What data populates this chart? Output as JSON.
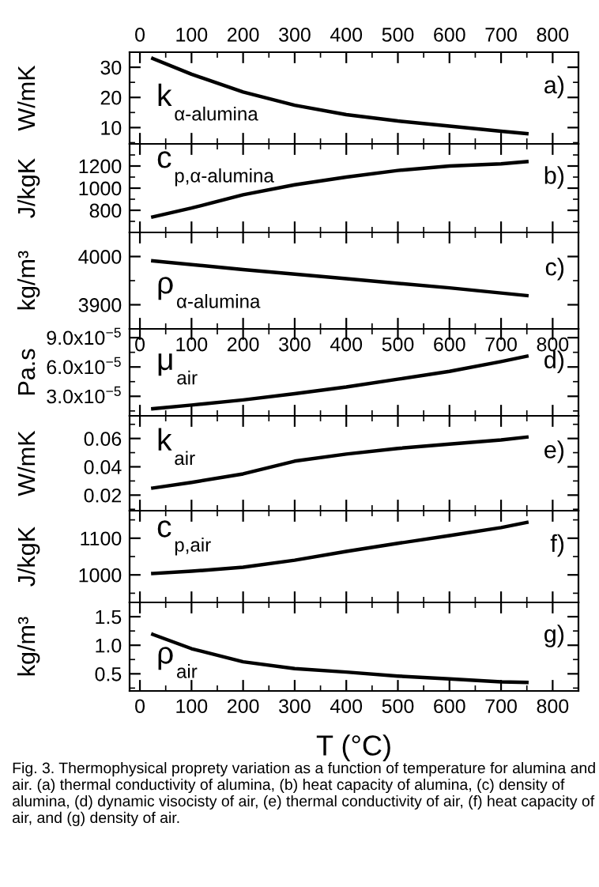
{
  "chart_data": [
    {
      "type": "line",
      "ylabel": "W/mK",
      "annotations": [
        "k$_{α-alumina}$",
        "a)"
      ],
      "xlim": [
        -20,
        850
      ],
      "xticks": [
        0,
        100,
        200,
        300,
        400,
        500,
        600,
        700,
        800
      ],
      "ylim": [
        4.6,
        35
      ],
      "yticks": [
        10,
        20,
        30
      ],
      "grid": false,
      "legend": false,
      "series": [
        {
          "color": "#000000",
          "x": [
            25,
            100,
            200,
            300,
            400,
            500,
            600,
            700,
            750
          ],
          "values": [
            32.9,
            27.7,
            21.8,
            17.4,
            14.3,
            12.2,
            10.5,
            8.8,
            8.0
          ]
        }
      ]
    },
    {
      "type": "line",
      "ylabel": "J/kgK",
      "annotations": [
        "c$_{p,α-alumina}$",
        "b)"
      ],
      "xlim": [
        -20,
        850
      ],
      "xticks": [
        0,
        100,
        200,
        300,
        400,
        500,
        600,
        700,
        800
      ],
      "tick_labels": "y",
      "ylim": [
        600,
        1400
      ],
      "yticks": [
        800,
        1000,
        1200
      ],
      "grid": false,
      "legend": false,
      "series": [
        {
          "color": "#000000",
          "x": [
            25,
            100,
            200,
            300,
            400,
            500,
            600,
            700,
            750
          ],
          "values": [
            740,
            820,
            940,
            1030,
            1100,
            1160,
            1200,
            1220,
            1240
          ]
        }
      ]
    },
    {
      "type": "line",
      "ylabel": "kg/m³",
      "annotations": [
        "ρ$_{α-alumina}$",
        "c)"
      ],
      "xlim": [
        -20,
        850
      ],
      "xticks": [
        0,
        100,
        200,
        300,
        400,
        500,
        600,
        700,
        800
      ],
      "tick_labels": "y",
      "ylim": [
        3850,
        4050
      ],
      "yticks": [
        3900,
        4000
      ],
      "grid": false,
      "legend": false,
      "series": [
        {
          "color": "#000000",
          "x": [
            25,
            200,
            400,
            600,
            750
          ],
          "values": [
            3991,
            3973,
            3954,
            3935,
            3919
          ]
        }
      ]
    },
    {
      "type": "line",
      "ylabel": "Pa.s",
      "annotations": [
        "μ$_{air}$",
        "d)"
      ],
      "xlim": [
        -20,
        850
      ],
      "xticks": [
        0,
        100,
        200,
        300,
        400,
        500,
        600,
        700,
        800
      ],
      "ylim": [
        1e-05,
        9.9e-05
      ],
      "yticks": [
        {
          "value": 3e-05,
          "label": "3.0x10$^{−5}$"
        },
        {
          "value": 6e-05,
          "label": "6.0x10$^{−5}$"
        },
        {
          "value": 9e-05,
          "label": "9.0x10$^{−5}$"
        }
      ],
      "grid": false,
      "legend": false,
      "series": [
        {
          "color": "#000000",
          "x": [
            25,
            100,
            200,
            300,
            400,
            500,
            600,
            700,
            750
          ],
          "values": [
            1.73e-05,
            2.1e-05,
            2.63e-05,
            3.27e-05,
            3.95e-05,
            4.75e-05,
            5.55e-05,
            6.55e-05,
            7.1e-05
          ]
        }
      ]
    },
    {
      "type": "line",
      "ylabel": "W/mK",
      "annotations": [
        "k$_{air}$",
        "e)"
      ],
      "xlim": [
        -20,
        850
      ],
      "xticks": [
        0,
        100,
        200,
        300,
        400,
        500,
        600,
        700,
        800
      ],
      "tick_labels": "y",
      "ylim": [
        0.009,
        0.076
      ],
      "yticks": [
        0.02,
        0.04,
        0.06
      ],
      "grid": false,
      "legend": false,
      "series": [
        {
          "color": "#000000",
          "x": [
            25,
            100,
            200,
            300,
            400,
            500,
            600,
            700,
            750
          ],
          "values": [
            0.025,
            0.029,
            0.035,
            0.044,
            0.049,
            0.053,
            0.056,
            0.059,
            0.061
          ]
        }
      ]
    },
    {
      "type": "line",
      "ylabel": "J/kgK",
      "annotations": [
        "c$_{p,air}$",
        "f)"
      ],
      "xlim": [
        -20,
        850
      ],
      "xticks": [
        0,
        100,
        200,
        300,
        400,
        500,
        600,
        700,
        800
      ],
      "tick_labels": "y",
      "ylim": [
        925,
        1175
      ],
      "yticks": [
        1000,
        1100
      ],
      "grid": false,
      "legend": false,
      "series": [
        {
          "color": "#000000",
          "x": [
            25,
            100,
            200,
            300,
            400,
            500,
            600,
            700,
            750
          ],
          "values": [
            1004,
            1010,
            1021,
            1040,
            1064,
            1086,
            1107,
            1129,
            1143
          ]
        }
      ]
    },
    {
      "type": "line",
      "ylabel": "kg/m³",
      "xlabel": "T (°C)",
      "annotations": [
        "ρ$_{air}$",
        "g)",
        "Fig. 3. Thermophysical proprety variation as a function of temperature for alumina and air. (a) thermal conductivity of alumina, (b) heat capacity of alumina, (c) density of alumina, (d) dynamic visocisty of air, (e) thermal conductivity of air, (f) heat capacity of air, and (g) density of air."
      ],
      "xlim": [
        -20,
        850
      ],
      "xticks": [
        0,
        100,
        200,
        300,
        400,
        500,
        600,
        700,
        800
      ],
      "ylim": [
        0.2,
        1.75
      ],
      "yticks": [
        0.5,
        {
          "value": 1.0,
          "label": "1.0"
        },
        1.5
      ],
      "grid": false,
      "legend": false,
      "series": [
        {
          "color": "#000000",
          "x": [
            25,
            100,
            200,
            300,
            400,
            500,
            600,
            700,
            750
          ],
          "values": [
            1.19,
            0.94,
            0.71,
            0.59,
            0.53,
            0.46,
            0.41,
            0.36,
            0.35
          ]
        }
      ]
    }
  ]
}
